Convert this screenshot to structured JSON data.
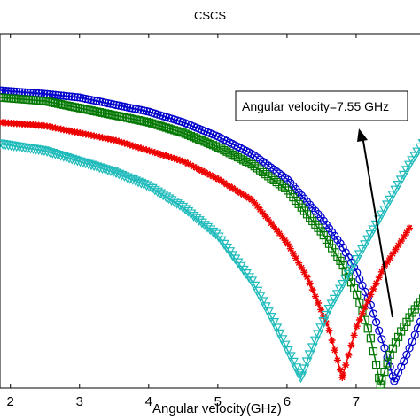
{
  "chart_data": {
    "type": "line",
    "title": "CSCS",
    "xlabel": "Angular velocity(GHz)",
    "ylabel": "",
    "xlim": [
      1.85,
      8.0
    ],
    "ylim": [
      0.0,
      1.0
    ],
    "xticks": [
      2,
      3,
      4,
      5,
      6,
      7
    ],
    "grid": false,
    "annotation": {
      "text": "Angular velocity=7.55 GHz",
      "arrow": "points toward the resonance dips"
    },
    "series": [
      {
        "color": "#0000CC",
        "marker": "circle",
        "x0": 7.55,
        "x": [
          1.85,
          2.5,
          3,
          3.5,
          4,
          4.5,
          5,
          5.5,
          6,
          6.5,
          6.8,
          7,
          7.2,
          7.4,
          7.55,
          7.7,
          7.85,
          8.0
        ],
        "y": [
          0.84,
          0.83,
          0.82,
          0.8,
          0.78,
          0.75,
          0.71,
          0.66,
          0.59,
          0.48,
          0.4,
          0.33,
          0.24,
          0.12,
          0.02,
          0.08,
          0.15,
          0.22
        ]
      },
      {
        "color": "#007700",
        "marker": "square",
        "x0": 7.35,
        "x": [
          1.85,
          2.5,
          3,
          3.5,
          4,
          4.5,
          5,
          5.5,
          6,
          6.5,
          6.8,
          7,
          7.2,
          7.35,
          7.5,
          7.65,
          7.8,
          8.0
        ],
        "y": [
          0.82,
          0.81,
          0.79,
          0.77,
          0.75,
          0.72,
          0.68,
          0.63,
          0.56,
          0.44,
          0.35,
          0.27,
          0.15,
          0.01,
          0.1,
          0.16,
          0.21,
          0.26
        ]
      },
      {
        "color": "#EE0000",
        "marker": "asterisk",
        "x0": 6.8,
        "x": [
          1.85,
          2.5,
          3,
          3.5,
          4,
          4.5,
          5,
          5.5,
          6,
          6.3,
          6.6,
          6.8,
          7.0,
          7.2,
          7.4,
          7.6,
          7.8
        ],
        "y": [
          0.75,
          0.74,
          0.72,
          0.7,
          0.67,
          0.64,
          0.59,
          0.53,
          0.41,
          0.31,
          0.17,
          0.03,
          0.17,
          0.26,
          0.34,
          0.4,
          0.46
        ]
      },
      {
        "color": "#20BBBB",
        "marker": "triangle-down",
        "x0": 6.2,
        "x": [
          1.85,
          2.5,
          3,
          3.5,
          4,
          4.5,
          5,
          5.5,
          5.8,
          6.0,
          6.2,
          6.4,
          6.6,
          6.8,
          7.0,
          7.2,
          7.4,
          7.6,
          7.8,
          8.0
        ],
        "y": [
          0.69,
          0.67,
          0.64,
          0.61,
          0.57,
          0.51,
          0.43,
          0.3,
          0.19,
          0.11,
          0.03,
          0.13,
          0.22,
          0.29,
          0.36,
          0.43,
          0.5,
          0.57,
          0.64,
          0.7
        ]
      }
    ]
  }
}
